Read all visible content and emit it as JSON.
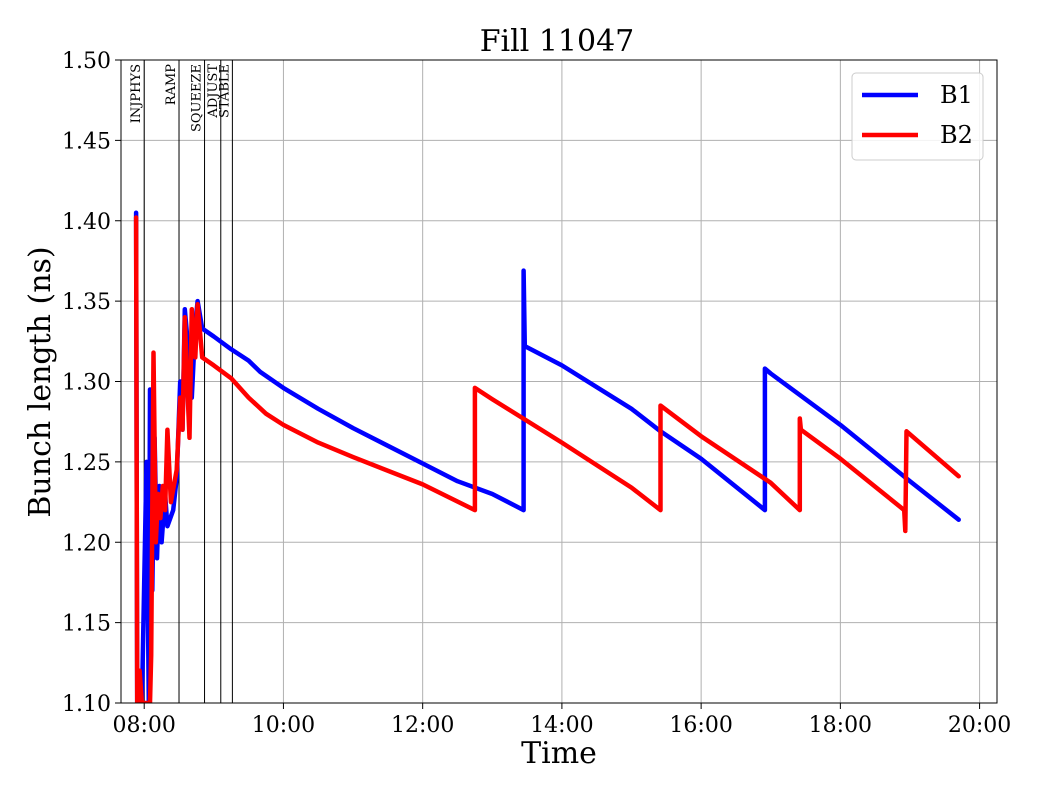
{
  "chart_data": {
    "type": "line",
    "title": "Fill 11047",
    "xlabel": "Time",
    "ylabel": "Bunch length (ns)",
    "xlim": [
      "07:40",
      "20:15"
    ],
    "ylim": [
      1.1,
      1.5
    ],
    "x_ticks": [
      "08:00",
      "10:00",
      "12:00",
      "14:00",
      "16:00",
      "18:00",
      "20:00"
    ],
    "y_ticks": [
      "1.10",
      "1.15",
      "1.20",
      "1.25",
      "1.30",
      "1.35",
      "1.40",
      "1.45",
      "1.50"
    ],
    "grid": true,
    "legend_position": "top-right",
    "phases": [
      {
        "label": "INJPHYS",
        "time": "08:00"
      },
      {
        "label": "RAMP",
        "time": "08:30"
      },
      {
        "label": "SQUEEZE",
        "time": "08:52"
      },
      {
        "label": "ADJUST",
        "time": "09:06"
      },
      {
        "label": "STABLE",
        "time": "09:16"
      }
    ],
    "series": [
      {
        "name": "B1",
        "color": "#0000ff",
        "points": [
          [
            "07:53",
            1.405
          ],
          [
            "07:54",
            1.1
          ],
          [
            "07:58",
            1.1
          ],
          [
            "08:02",
            1.25
          ],
          [
            "08:04",
            1.1
          ],
          [
            "08:05",
            1.295
          ],
          [
            "08:07",
            1.17
          ],
          [
            "08:09",
            1.265
          ],
          [
            "08:11",
            1.19
          ],
          [
            "08:13",
            1.235
          ],
          [
            "08:15",
            1.2
          ],
          [
            "08:18",
            1.23
          ],
          [
            "08:20",
            1.21
          ],
          [
            "08:25",
            1.22
          ],
          [
            "08:28",
            1.24
          ],
          [
            "08:31",
            1.3
          ],
          [
            "08:33",
            1.27
          ],
          [
            "08:35",
            1.345
          ],
          [
            "08:38",
            1.32
          ],
          [
            "08:41",
            1.29
          ],
          [
            "08:44",
            1.335
          ],
          [
            "08:46",
            1.35
          ],
          [
            "08:50",
            1.333
          ],
          [
            "09:00",
            1.328
          ],
          [
            "09:15",
            1.32
          ],
          [
            "09:30",
            1.313
          ],
          [
            "09:40",
            1.306
          ],
          [
            "10:00",
            1.296
          ],
          [
            "10:30",
            1.283
          ],
          [
            "11:00",
            1.271
          ],
          [
            "12:00",
            1.249
          ],
          [
            "12:30",
            1.238
          ],
          [
            "13:00",
            1.23
          ],
          [
            "13:27",
            1.22
          ],
          [
            "13:27",
            1.369
          ],
          [
            "13:28",
            1.322
          ],
          [
            "14:00",
            1.31
          ],
          [
            "15:00",
            1.283
          ],
          [
            "15:25",
            1.269
          ],
          [
            "16:00",
            1.252
          ],
          [
            "16:55",
            1.22
          ],
          [
            "16:55",
            1.308
          ],
          [
            "17:00",
            1.305
          ],
          [
            "18:00",
            1.273
          ],
          [
            "19:00",
            1.238
          ],
          [
            "19:42",
            1.214
          ]
        ]
      },
      {
        "name": "B2",
        "color": "#ff0000",
        "points": [
          [
            "07:53",
            1.402
          ],
          [
            "07:54",
            1.1
          ],
          [
            "07:56",
            1.12
          ],
          [
            "07:58",
            1.1
          ],
          [
            "08:05",
            1.1
          ],
          [
            "08:06",
            1.13
          ],
          [
            "08:08",
            1.318
          ],
          [
            "08:10",
            1.2
          ],
          [
            "08:12",
            1.23
          ],
          [
            "08:14",
            1.215
          ],
          [
            "08:16",
            1.235
          ],
          [
            "08:18",
            1.22
          ],
          [
            "08:20",
            1.27
          ],
          [
            "08:23",
            1.225
          ],
          [
            "08:28",
            1.245
          ],
          [
            "08:31",
            1.29
          ],
          [
            "08:33",
            1.27
          ],
          [
            "08:35",
            1.34
          ],
          [
            "08:37",
            1.3
          ],
          [
            "08:39",
            1.265
          ],
          [
            "08:41",
            1.345
          ],
          [
            "08:44",
            1.315
          ],
          [
            "08:46",
            1.348
          ],
          [
            "08:50",
            1.315
          ],
          [
            "09:00",
            1.31
          ],
          [
            "09:15",
            1.302
          ],
          [
            "09:30",
            1.29
          ],
          [
            "09:45",
            1.28
          ],
          [
            "10:00",
            1.273
          ],
          [
            "10:30",
            1.262
          ],
          [
            "11:00",
            1.253
          ],
          [
            "12:00",
            1.236
          ],
          [
            "12:45",
            1.22
          ],
          [
            "12:45",
            1.296
          ],
          [
            "13:00",
            1.289
          ],
          [
            "14:00",
            1.262
          ],
          [
            "15:00",
            1.234
          ],
          [
            "15:25",
            1.22
          ],
          [
            "15:25",
            1.285
          ],
          [
            "16:00",
            1.266
          ],
          [
            "17:00",
            1.237
          ],
          [
            "17:25",
            1.22
          ],
          [
            "17:25",
            1.277
          ],
          [
            "17:26",
            1.27
          ],
          [
            "18:00",
            1.252
          ],
          [
            "18:55",
            1.22
          ],
          [
            "18:56",
            1.207
          ],
          [
            "18:57",
            1.269
          ],
          [
            "19:42",
            1.241
          ]
        ]
      }
    ]
  }
}
